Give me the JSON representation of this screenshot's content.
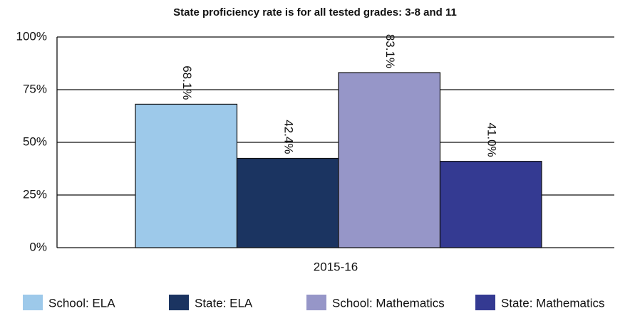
{
  "chart_data": {
    "type": "bar",
    "title": "State proficiency rate is for all tested grades: 3-8 and 11",
    "categories": [
      "2015-16"
    ],
    "series": [
      {
        "name": "School: ELA",
        "color": "#9dc9ea",
        "values": [
          68.1
        ],
        "value_labels": [
          "68.1%"
        ]
      },
      {
        "name": "State: ELA",
        "color": "#1b3461",
        "values": [
          42.4
        ],
        "value_labels": [
          "42.4%"
        ]
      },
      {
        "name": "School: Mathematics",
        "color": "#9696c8",
        "values": [
          83.1
        ],
        "value_labels": [
          "83.1%"
        ]
      },
      {
        "name": "State: Mathematics",
        "color": "#343a92",
        "values": [
          41.0
        ],
        "value_labels": [
          "41.0%"
        ]
      }
    ],
    "ylim": [
      0,
      100
    ],
    "yticks": [
      {
        "value": 0,
        "label": "0%"
      },
      {
        "value": 25,
        "label": "25%"
      },
      {
        "value": 50,
        "label": "50%"
      },
      {
        "value": 75,
        "label": "75%"
      },
      {
        "value": 100,
        "label": "100%"
      }
    ],
    "grid": true,
    "legend": "bottom"
  }
}
